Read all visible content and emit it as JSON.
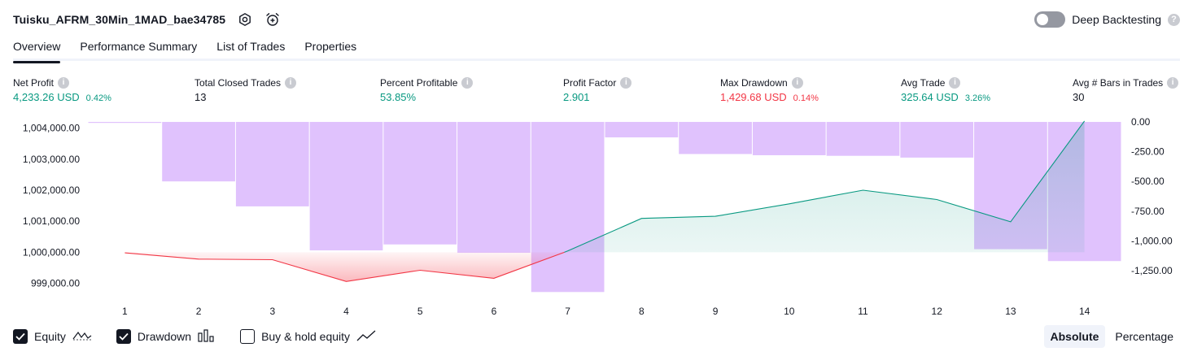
{
  "header": {
    "title": "Tuisku_AFRM_30Min_1MAD_bae34785",
    "icons": [
      "settings-icon",
      "alarm-add-icon"
    ]
  },
  "deep_backtesting": {
    "label": "Deep Backtesting",
    "enabled": false,
    "help": "?"
  },
  "tabs": [
    {
      "label": "Overview",
      "active": true
    },
    {
      "label": "Performance Summary",
      "active": false
    },
    {
      "label": "List of Trades",
      "active": false
    },
    {
      "label": "Properties",
      "active": false
    }
  ],
  "metrics": [
    {
      "label": "Net Profit",
      "value": "4,233.26 USD",
      "pct": "0.42%",
      "color": "#089981"
    },
    {
      "label": "Total Closed Trades",
      "value": "13",
      "pct": "",
      "color": "#131722"
    },
    {
      "label": "Percent Profitable",
      "value": "53.85%",
      "pct": "",
      "color": "#089981"
    },
    {
      "label": "Profit Factor",
      "value": "2.901",
      "pct": "",
      "color": "#089981"
    },
    {
      "label": "Max Drawdown",
      "value": "1,429.68 USD",
      "pct": "0.14%",
      "color": "#f23645"
    },
    {
      "label": "Avg Trade",
      "value": "325.64 USD",
      "pct": "3.26%",
      "color": "#089981"
    },
    {
      "label": "Avg # Bars in Trades",
      "value": "30",
      "pct": "",
      "color": "#131722"
    }
  ],
  "chart_data": {
    "type": "line",
    "x": [
      1,
      2,
      3,
      4,
      5,
      6,
      7,
      8,
      9,
      10,
      11,
      12,
      13,
      14
    ],
    "x_tick_labels": [
      "1",
      "2",
      "3",
      "4",
      "5",
      "6",
      "7",
      "8",
      "9",
      "10",
      "11",
      "12",
      "13",
      "14"
    ],
    "left_axis": {
      "ticks": [
        999000,
        1000000,
        1001000,
        1002000,
        1003000,
        1004000
      ],
      "tick_labels": [
        "999,000.00",
        "1,000,000.00",
        "1,001,000.00",
        "1,002,000.00",
        "1,003,000.00",
        "1,004,000.00"
      ],
      "ylim": [
        998700,
        1004200
      ]
    },
    "right_axis": {
      "ticks": [
        0,
        -250,
        -500,
        -750,
        -1000,
        -1250
      ],
      "tick_labels": [
        "0.00",
        "-250.00",
        "-500.00",
        "-750.00",
        "-1,000.00",
        "-1,250.00"
      ],
      "ylim": [
        -1435,
        0
      ]
    },
    "baseline": 1000000,
    "series": [
      {
        "name": "Equity",
        "axis": "left",
        "x": [
          1,
          2,
          3,
          4,
          5,
          6,
          7,
          8,
          9,
          10,
          11,
          12,
          13,
          14
        ],
        "values": [
          999980,
          999780,
          999760,
          999060,
          999420,
          999160,
          1000040,
          1001090,
          1001160,
          1001560,
          1002000,
          1001700,
          1000980,
          1004230
        ]
      },
      {
        "name": "Drawdown",
        "axis": "right",
        "bars": [
          {
            "from": 0.5,
            "to": 1.5,
            "value": -8
          },
          {
            "from": 1.5,
            "to": 2.5,
            "value": -500
          },
          {
            "from": 2.5,
            "to": 3.5,
            "value": -710
          },
          {
            "from": 3.5,
            "to": 4.5,
            "value": -1080
          },
          {
            "from": 4.5,
            "to": 5.5,
            "value": -1030
          },
          {
            "from": 5.5,
            "to": 6.5,
            "value": -1100
          },
          {
            "from": 6.5,
            "to": 7.5,
            "value": -1430
          },
          {
            "from": 7.5,
            "to": 8.5,
            "value": -130
          },
          {
            "from": 8.5,
            "to": 9.5,
            "value": -270
          },
          {
            "from": 9.5,
            "to": 10.5,
            "value": -280
          },
          {
            "from": 10.5,
            "to": 11.5,
            "value": -285
          },
          {
            "from": 11.5,
            "to": 12.5,
            "value": -300
          },
          {
            "from": 12.5,
            "to": 13.5,
            "value": -1070
          },
          {
            "from": 13.5,
            "to": 14.5,
            "value": -1170
          }
        ]
      }
    ],
    "colors": {
      "equity_up": "#089981",
      "equity_down": "#f23645",
      "drawdown_bar": "#e0c2fd",
      "equity_fill_up": "#daf1ec",
      "equity_fill_down": "#f9c6ca"
    },
    "grid": false
  },
  "legend": [
    {
      "label": "Equity",
      "checked": true,
      "icon": "equity-line-icon"
    },
    {
      "label": "Drawdown",
      "checked": true,
      "icon": "drawdown-bars-icon"
    },
    {
      "label": "Buy & hold equity",
      "checked": false,
      "icon": "buy-hold-line-icon"
    }
  ],
  "mode": [
    {
      "label": "Absolute",
      "active": true
    },
    {
      "label": "Percentage",
      "active": false
    }
  ]
}
